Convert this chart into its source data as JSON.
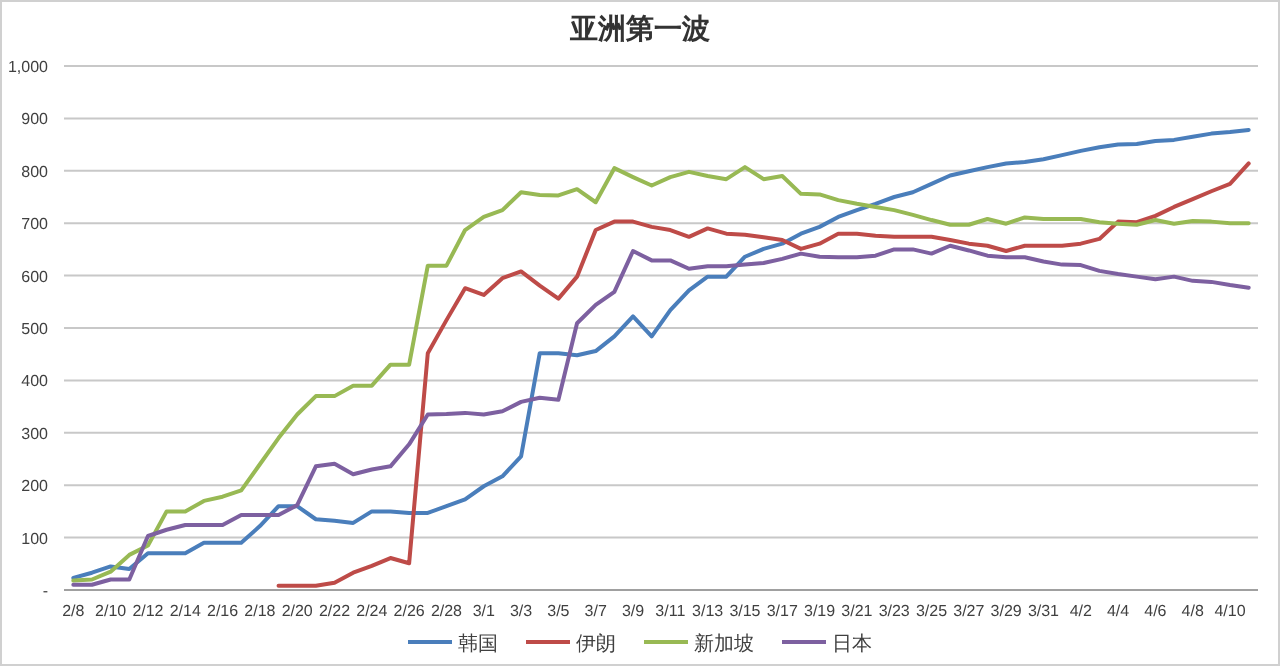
{
  "chart_data": {
    "type": "line",
    "title": "亚洲第一波",
    "categories": [
      "2/8",
      null,
      "2/10",
      null,
      "2/12",
      null,
      "2/14",
      null,
      "2/16",
      null,
      "2/18",
      null,
      "2/20",
      null,
      "2/22",
      null,
      "2/24",
      null,
      "2/26",
      null,
      "2/28",
      null,
      "3/1",
      null,
      "3/3",
      null,
      "3/5",
      null,
      "3/7",
      null,
      "3/9",
      null,
      "3/11",
      null,
      "3/13",
      null,
      "3/15",
      null,
      "3/17",
      null,
      "3/19",
      null,
      "3/21",
      null,
      "3/23",
      null,
      "3/25",
      null,
      "3/27",
      null,
      "3/29",
      null,
      "3/31",
      null,
      "4/2",
      null,
      "4/4",
      null,
      "4/6",
      null,
      "4/8",
      null,
      "4/10",
      null
    ],
    "series": [
      {
        "name": "韩国",
        "color": "#4a7ebb",
        "values": [
          23,
          33,
          45,
          40,
          70,
          70,
          70,
          90,
          90,
          90,
          122,
          160,
          160,
          135,
          132,
          128,
          150,
          150,
          147,
          147,
          160,
          173,
          198,
          217,
          255,
          452,
          452,
          448,
          456,
          484,
          522,
          484,
          534,
          572,
          598,
          598,
          636,
          651,
          661,
          680,
          693,
          712,
          725,
          737,
          750,
          759,
          775,
          791,
          799,
          807,
          814,
          817,
          822,
          830,
          838,
          845,
          850,
          851,
          857,
          859,
          865,
          871,
          874,
          878
        ]
      },
      {
        "name": "伊朗",
        "color": "#be4b48",
        "values": [
          null,
          null,
          null,
          null,
          null,
          null,
          null,
          null,
          null,
          null,
          null,
          8,
          8,
          8,
          14,
          33,
          46,
          61,
          51,
          452,
          515,
          576,
          563,
          595,
          608,
          581,
          556,
          598,
          687,
          703,
          703,
          693,
          687,
          674,
          690,
          680,
          678,
          673,
          668,
          651,
          661,
          680,
          680,
          676,
          674,
          674,
          674,
          668,
          661,
          657,
          647,
          657,
          657,
          657,
          661,
          670,
          703,
          702,
          714,
          731,
          746,
          761,
          775,
          814
        ]
      },
      {
        "name": "新加坡",
        "color": "#98b954",
        "values": [
          18,
          20,
          35,
          67,
          85,
          150,
          150,
          170,
          178,
          190,
          240,
          290,
          335,
          370,
          370,
          390,
          390,
          430,
          430,
          619,
          619,
          687,
          712,
          725,
          759,
          754,
          753,
          765,
          740,
          805,
          788,
          772,
          788,
          798,
          790,
          784,
          807,
          784,
          790,
          756,
          755,
          744,
          737,
          731,
          725,
          716,
          706,
          697,
          697,
          708,
          699,
          711,
          708,
          708,
          708,
          702,
          699,
          697,
          706,
          699,
          704,
          703,
          700,
          700
        ]
      },
      {
        "name": "日本",
        "color": "#7d60a0",
        "values": [
          10,
          10,
          20,
          20,
          103,
          115,
          124,
          124,
          124,
          143,
          143,
          143,
          162,
          236,
          241,
          221,
          230,
          236,
          278,
          335,
          336,
          338,
          335,
          341,
          359,
          367,
          363,
          509,
          544,
          569,
          647,
          629,
          629,
          613,
          618,
          618,
          621,
          624,
          632,
          642,
          636,
          635,
          635,
          638,
          650,
          650,
          642,
          657,
          648,
          638,
          635,
          635,
          627,
          621,
          620,
          609,
          603,
          598,
          593,
          598,
          590,
          588,
          582,
          577
        ]
      }
    ],
    "ylim": [
      0,
      1000
    ],
    "yticks": [
      {
        "value": 0,
        "label": "-"
      },
      100,
      200,
      300,
      400,
      500,
      600,
      700,
      800,
      900,
      {
        "value": 1000,
        "label": "1,000"
      }
    ],
    "grid": "y",
    "legend": "bottom"
  }
}
